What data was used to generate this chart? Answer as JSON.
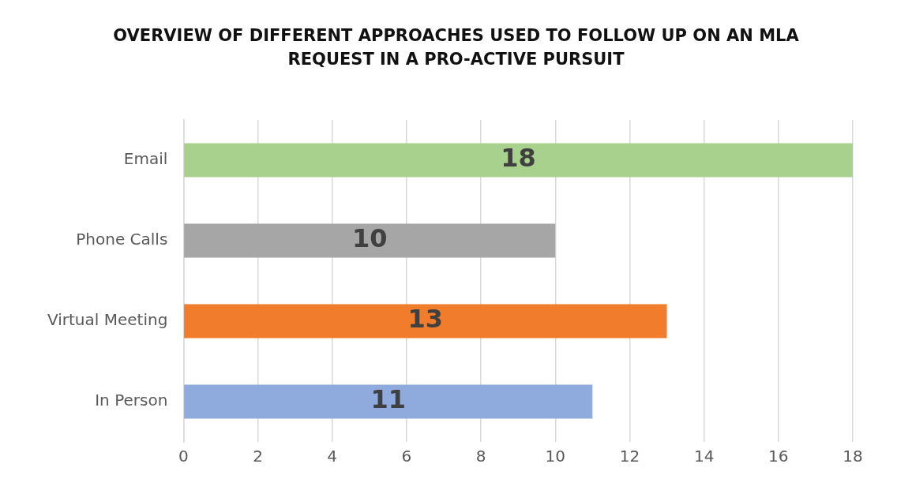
{
  "chart_data": {
    "type": "bar",
    "orientation": "horizontal",
    "title": "OVERVIEW OF DIFFERENT APPROACHES USED TO FOLLOW UP ON AN MLA REQUEST IN A PRO-ACTIVE PURSUIT",
    "categories": [
      "Email",
      "Phone Calls",
      "Virtual Meeting",
      "In Person"
    ],
    "values": [
      18,
      10,
      13,
      11
    ],
    "colors": [
      "#a9d18e",
      "#a6a6a6",
      "#f07c2c",
      "#8faadc"
    ],
    "xlim": [
      0,
      18
    ],
    "xticks": [
      0,
      2,
      4,
      6,
      8,
      10,
      12,
      14,
      16,
      18
    ],
    "grid": "x",
    "legend": false,
    "data_labels": true
  }
}
